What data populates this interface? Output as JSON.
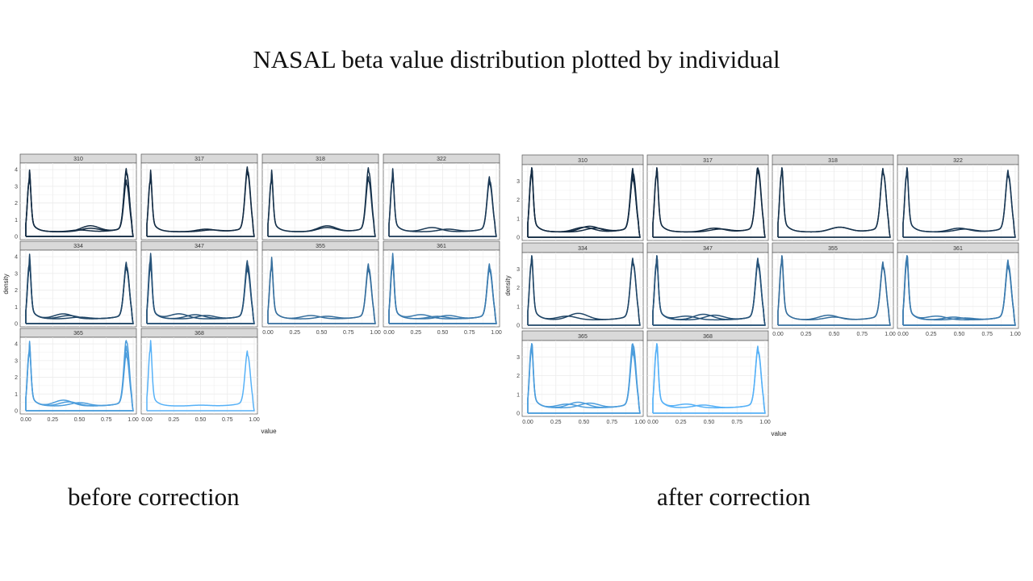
{
  "page_title": "NASAL beta value distribution plotted by individual",
  "captions": {
    "before": "before correction",
    "after": "after correction"
  },
  "colors": {
    "dark": "#132b43",
    "light": "#56b1f7",
    "strip_bg": "#d9d9d9",
    "grid": "#ebebeb"
  },
  "chart_data": [
    {
      "type": "line",
      "id": "before",
      "xlabel": "value",
      "ylabel": "density",
      "xlim": [
        0,
        1
      ],
      "ylim": [
        0,
        4.2
      ],
      "x_ticks": [
        "0.00",
        "0.25",
        "0.50",
        "0.75",
        "1.00"
      ],
      "y_ticks": [
        0,
        1,
        2,
        3,
        4
      ],
      "grid": true,
      "panels": [
        {
          "strip": "310",
          "level": 0.0,
          "curves": [
            {
              "left_peak": 3.3,
              "right_peak": 3.8,
              "hump": 0.2,
              "hump_pos": 0.6
            },
            {
              "left_peak": 3.2,
              "right_peak": 3.7,
              "hump": 0.1,
              "hump_pos": 0.5
            },
            {
              "left_peak": 3.3,
              "right_peak": 3.1,
              "hump": 0.35,
              "hump_pos": 0.6
            }
          ]
        },
        {
          "strip": "317",
          "level": 0.0,
          "curves": [
            {
              "left_peak": 3.3,
              "right_peak": 3.9,
              "hump": 0.1,
              "hump_pos": 0.6
            },
            {
              "left_peak": 3.2,
              "right_peak": 3.7,
              "hump": 0.15,
              "hump_pos": 0.55
            }
          ]
        },
        {
          "strip": "318",
          "level": 0.05,
          "curves": [
            {
              "left_peak": 3.3,
              "right_peak": 3.85,
              "hump": 0.25,
              "hump_pos": 0.55
            },
            {
              "left_peak": 3.2,
              "right_peak": 3.3,
              "hump": 0.35,
              "hump_pos": 0.55
            }
          ]
        },
        {
          "strip": "322",
          "level": 0.1,
          "curves": [
            {
              "left_peak": 3.4,
              "right_peak": 3.3,
              "hump": 0.25,
              "hump_pos": 0.4
            },
            {
              "left_peak": 3.3,
              "right_peak": 3.1,
              "hump": 0.15,
              "hump_pos": 0.55
            }
          ]
        },
        {
          "strip": "334",
          "level": 0.2,
          "curves": [
            {
              "left_peak": 3.5,
              "right_peak": 3.4,
              "hump": 0.2,
              "hump_pos": 0.4
            },
            {
              "left_peak": 3.2,
              "right_peak": 3.2,
              "hump": 0.1,
              "hump_pos": 0.5
            },
            {
              "left_peak": 3.3,
              "right_peak": 3.3,
              "hump": 0.3,
              "hump_pos": 0.35
            }
          ]
        },
        {
          "strip": "347",
          "level": 0.3,
          "curves": [
            {
              "left_peak": 3.7,
              "right_peak": 3.5,
              "hump": 0.3,
              "hump_pos": 0.3
            },
            {
              "left_peak": 3.4,
              "right_peak": 3.3,
              "hump": 0.2,
              "hump_pos": 0.55
            },
            {
              "left_peak": 3.2,
              "right_peak": 3.1,
              "hump": 0.25,
              "hump_pos": 0.45
            }
          ]
        },
        {
          "strip": "355",
          "level": 0.5,
          "curves": [
            {
              "left_peak": 3.3,
              "right_peak": 3.3,
              "hump": 0.2,
              "hump_pos": 0.4
            },
            {
              "left_peak": 3.2,
              "right_peak": 3.1,
              "hump": 0.15,
              "hump_pos": 0.55
            }
          ]
        },
        {
          "strip": "361",
          "level": 0.6,
          "curves": [
            {
              "left_peak": 3.6,
              "right_peak": 3.3,
              "hump": 0.25,
              "hump_pos": 0.3
            },
            {
              "left_peak": 3.3,
              "right_peak": 3.1,
              "hump": 0.2,
              "hump_pos": 0.55
            },
            {
              "left_peak": 3.4,
              "right_peak": 3.2,
              "hump": 0.15,
              "hump_pos": 0.45
            }
          ]
        },
        {
          "strip": "365",
          "level": 0.85,
          "curves": [
            {
              "left_peak": 3.5,
              "right_peak": 4.1,
              "hump": 0.35,
              "hump_pos": 0.35
            },
            {
              "left_peak": 3.3,
              "right_peak": 3.6,
              "hump": 0.2,
              "hump_pos": 0.5
            },
            {
              "left_peak": 3.4,
              "right_peak": 3.2,
              "hump": 0.25,
              "hump_pos": 0.4
            }
          ]
        },
        {
          "strip": "368",
          "level": 1.0,
          "curves": [
            {
              "left_peak": 3.6,
              "right_peak": 3.3,
              "hump": 0.05,
              "hump_pos": 0.5
            }
          ]
        }
      ]
    },
    {
      "type": "line",
      "id": "after",
      "xlabel": "value",
      "ylabel": "density",
      "xlim": [
        0,
        1
      ],
      "ylim": [
        0,
        3.7
      ],
      "x_ticks": [
        "0.00",
        "0.25",
        "0.50",
        "0.75",
        "1.00"
      ],
      "y_ticks": [
        0,
        1,
        2,
        3
      ],
      "grid": true,
      "panels": [
        {
          "strip": "310",
          "level": 0.0,
          "curves": [
            {
              "left_peak": 3.4,
              "right_peak": 3.4,
              "hump": 0.3,
              "hump_pos": 0.55
            },
            {
              "left_peak": 3.3,
              "right_peak": 3.1,
              "hump": 0.2,
              "hump_pos": 0.6
            },
            {
              "left_peak": 3.2,
              "right_peak": 3.0,
              "hump": 0.25,
              "hump_pos": 0.5
            }
          ]
        },
        {
          "strip": "317",
          "level": 0.0,
          "curves": [
            {
              "left_peak": 3.3,
              "right_peak": 3.6,
              "hump": 0.2,
              "hump_pos": 0.55
            },
            {
              "left_peak": 3.2,
              "right_peak": 3.4,
              "hump": 0.15,
              "hump_pos": 0.6
            }
          ]
        },
        {
          "strip": "318",
          "level": 0.05,
          "curves": [
            {
              "left_peak": 3.35,
              "right_peak": 3.4,
              "hump": 0.25,
              "hump_pos": 0.55
            },
            {
              "left_peak": 3.3,
              "right_peak": 3.35,
              "hump": 0.25,
              "hump_pos": 0.55
            }
          ]
        },
        {
          "strip": "322",
          "level": 0.1,
          "curves": [
            {
              "left_peak": 3.3,
              "right_peak": 3.3,
              "hump": 0.2,
              "hump_pos": 0.5
            },
            {
              "left_peak": 3.2,
              "right_peak": 3.2,
              "hump": 0.15,
              "hump_pos": 0.55
            }
          ]
        },
        {
          "strip": "334",
          "level": 0.2,
          "curves": [
            {
              "left_peak": 3.3,
              "right_peak": 3.3,
              "hump": 0.35,
              "hump_pos": 0.45
            },
            {
              "left_peak": 3.2,
              "right_peak": 3.2,
              "hump": 0.2,
              "hump_pos": 0.35
            }
          ]
        },
        {
          "strip": "347",
          "level": 0.3,
          "curves": [
            {
              "left_peak": 3.3,
              "right_peak": 3.3,
              "hump": 0.3,
              "hump_pos": 0.45
            },
            {
              "left_peak": 3.2,
              "right_peak": 3.2,
              "hump": 0.2,
              "hump_pos": 0.3
            },
            {
              "left_peak": 3.1,
              "right_peak": 3.1,
              "hump": 0.25,
              "hump_pos": 0.55
            }
          ]
        },
        {
          "strip": "355",
          "level": 0.5,
          "curves": [
            {
              "left_peak": 3.3,
              "right_peak": 3.1,
              "hump": 0.25,
              "hump_pos": 0.45
            },
            {
              "left_peak": 3.2,
              "right_peak": 3.0,
              "hump": 0.15,
              "hump_pos": 0.5
            }
          ]
        },
        {
          "strip": "361",
          "level": 0.6,
          "curves": [
            {
              "left_peak": 3.5,
              "right_peak": 3.2,
              "hump": 0.2,
              "hump_pos": 0.3
            },
            {
              "left_peak": 3.3,
              "right_peak": 3.1,
              "hump": 0.15,
              "hump_pos": 0.45
            },
            {
              "left_peak": 3.2,
              "right_peak": 3.0,
              "hump": 0.1,
              "hump_pos": 0.55
            }
          ]
        },
        {
          "strip": "365",
          "level": 0.85,
          "curves": [
            {
              "left_peak": 3.5,
              "right_peak": 3.6,
              "hump": 0.3,
              "hump_pos": 0.45
            },
            {
              "left_peak": 3.3,
              "right_peak": 3.3,
              "hump": 0.25,
              "hump_pos": 0.55
            },
            {
              "left_peak": 3.2,
              "right_peak": 3.1,
              "hump": 0.2,
              "hump_pos": 0.35
            }
          ]
        },
        {
          "strip": "368",
          "level": 1.0,
          "curves": [
            {
              "left_peak": 3.4,
              "right_peak": 3.3,
              "hump": 0.2,
              "hump_pos": 0.3
            },
            {
              "left_peak": 3.3,
              "right_peak": 3.2,
              "hump": 0.15,
              "hump_pos": 0.45
            }
          ]
        }
      ]
    }
  ]
}
